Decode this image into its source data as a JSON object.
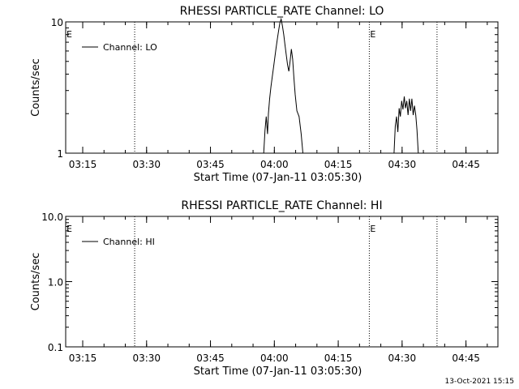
{
  "footer": {
    "timestamp": "13-Oct-2021 15:15"
  },
  "chart_data": [
    {
      "type": "line",
      "title": "RHESSI PARTICLE_RATE Channel: LO",
      "xlabel": "Start Time (07-Jan-11 03:05:30)",
      "ylabel": "Counts/sec",
      "yscale": "log",
      "ylim": [
        1,
        10
      ],
      "xlim_min": [
        5.5,
        107
      ],
      "x_tick_min": [
        9.5,
        24.5,
        39.5,
        54.5,
        69.5,
        84.5,
        99.5
      ],
      "x_tick_labels": [
        "03:15",
        "03:30",
        "03:45",
        "04:00",
        "04:15",
        "04:30",
        "04:45"
      ],
      "y_ticks": [
        1,
        10
      ],
      "y_tick_labels": [
        "1",
        "10"
      ],
      "event_lines_min": [
        21.7,
        76.8,
        92.7
      ],
      "event_markers": [
        {
          "x_min": 5.5,
          "label": "E"
        },
        {
          "x_min": 76.8,
          "label": "E"
        }
      ],
      "legend": {
        "position": "top-left",
        "label": "Channel: LO"
      },
      "series": [
        {
          "name": "Channel: LO",
          "points": [
            [
              52,
              1
            ],
            [
              52.3,
              1.5
            ],
            [
              52.6,
              1.9
            ],
            [
              52.9,
              1.4
            ],
            [
              53.1,
              2
            ],
            [
              53.4,
              2.6
            ],
            [
              53.7,
              3.2
            ],
            [
              54,
              3.8
            ],
            [
              54.3,
              4.5
            ],
            [
              54.6,
              5.3
            ],
            [
              54.9,
              6.3
            ],
            [
              55.2,
              7.4
            ],
            [
              55.5,
              8.6
            ],
            [
              55.8,
              9.8
            ],
            [
              56.1,
              10.5
            ],
            [
              56.4,
              9.3
            ],
            [
              56.7,
              8
            ],
            [
              57,
              6.7
            ],
            [
              57.3,
              5.6
            ],
            [
              57.6,
              4.7
            ],
            [
              57.9,
              4.2
            ],
            [
              58.2,
              5
            ],
            [
              58.5,
              6.2
            ],
            [
              58.8,
              5.2
            ],
            [
              59.1,
              3.7
            ],
            [
              59.4,
              2.8
            ],
            [
              59.8,
              2.1
            ],
            [
              60.3,
              1.9
            ],
            [
              60.8,
              1.4
            ],
            [
              61.2,
              1
            ],
            [
              82.6,
              1
            ],
            [
              82.9,
              1.6
            ],
            [
              83.2,
              1.9
            ],
            [
              83.5,
              1.45
            ],
            [
              83.8,
              2.2
            ],
            [
              84.1,
              1.9
            ],
            [
              84.4,
              2.5
            ],
            [
              84.7,
              2.15
            ],
            [
              85,
              2.7
            ],
            [
              85.3,
              2.2
            ],
            [
              85.6,
              2.5
            ],
            [
              85.9,
              1.95
            ],
            [
              86.2,
              2.6
            ],
            [
              86.5,
              2.1
            ],
            [
              86.8,
              2.6
            ],
            [
              87.1,
              1.95
            ],
            [
              87.4,
              2.3
            ],
            [
              87.7,
              1.95
            ],
            [
              88,
              1.5
            ],
            [
              88.3,
              1
            ]
          ]
        }
      ]
    },
    {
      "type": "line",
      "title": "RHESSI PARTICLE_RATE Channel: HI",
      "xlabel": "Start Time (07-Jan-11 03:05:30)",
      "ylabel": "Counts/sec",
      "yscale": "log",
      "ylim": [
        0.1,
        10
      ],
      "xlim_min": [
        5.5,
        107
      ],
      "x_tick_min": [
        9.5,
        24.5,
        39.5,
        54.5,
        69.5,
        84.5,
        99.5
      ],
      "x_tick_labels": [
        "03:15",
        "03:30",
        "03:45",
        "04:00",
        "04:15",
        "04:30",
        "04:45"
      ],
      "y_ticks": [
        0.1,
        1,
        10
      ],
      "y_tick_labels": [
        "0.1",
        "1.0",
        "10.0"
      ],
      "event_lines_min": [
        21.7,
        76.8,
        92.7
      ],
      "event_markers": [
        {
          "x_min": 5.5,
          "label": "E"
        },
        {
          "x_min": 76.8,
          "label": "E"
        }
      ],
      "legend": {
        "position": "top-left",
        "label": "Channel: HI"
      },
      "series": [
        {
          "name": "Channel: HI",
          "points": []
        }
      ]
    }
  ]
}
